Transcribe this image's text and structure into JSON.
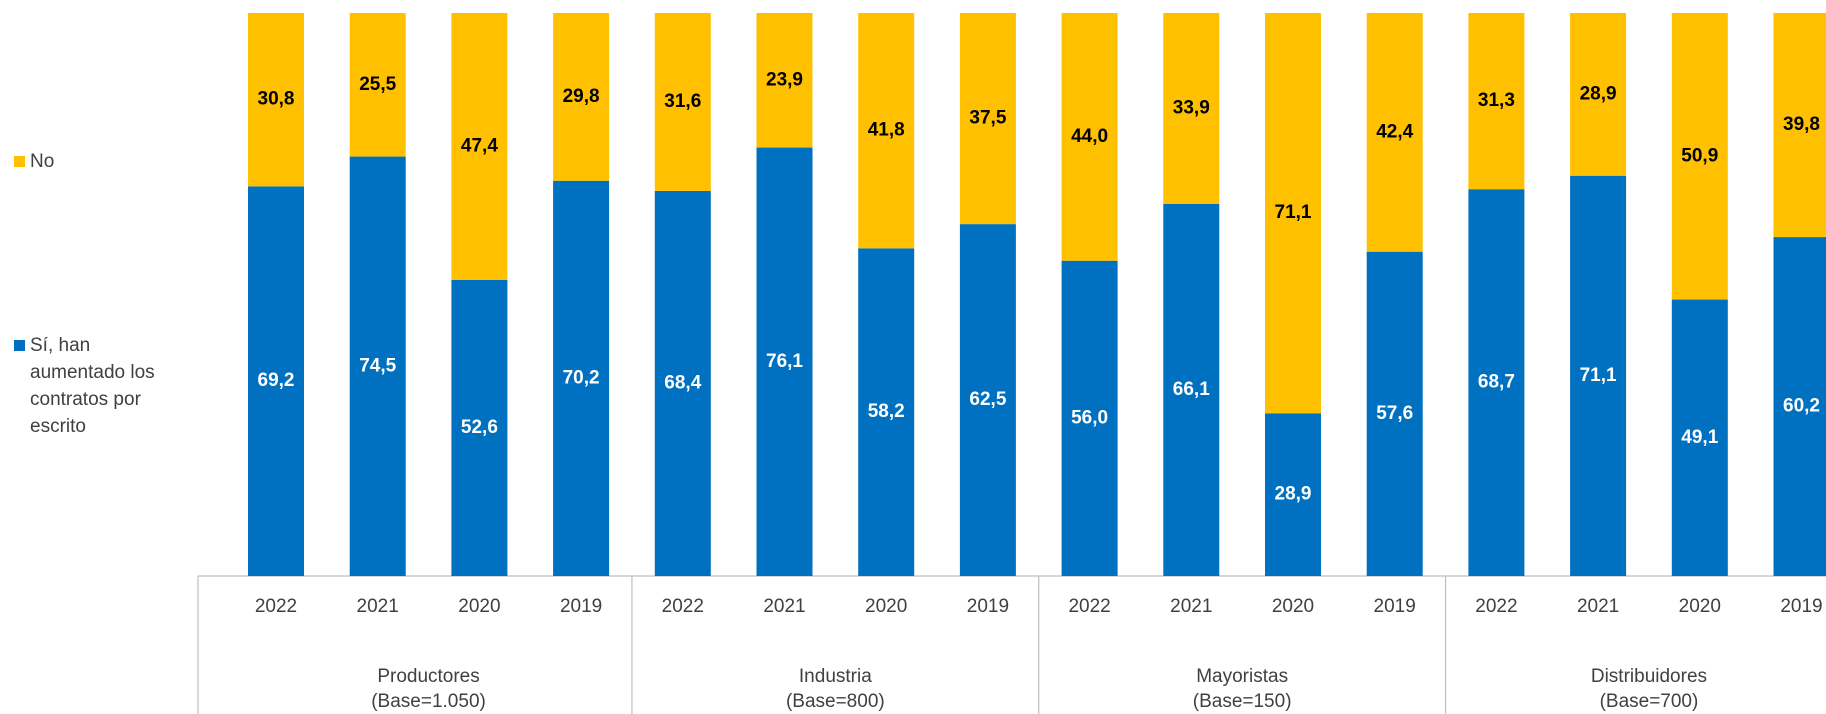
{
  "chart_data": {
    "type": "stacked_bar",
    "groups": [
      {
        "name": "Productores",
        "base": "(Base=1.050)",
        "categories": [
          "2022",
          "2021",
          "2020",
          "2019"
        ]
      },
      {
        "name": "Industria",
        "base": "(Base=800)",
        "categories": [
          "2022",
          "2021",
          "2020",
          "2019"
        ]
      },
      {
        "name": "Mayoristas",
        "base": "(Base=150)",
        "categories": [
          "2022",
          "2021",
          "2020",
          "2019"
        ]
      },
      {
        "name": "Distribuidores",
        "base": "(Base=700)",
        "categories": [
          "2022",
          "2021",
          "2020",
          "2019"
        ]
      }
    ],
    "series": [
      {
        "name": "Sí, han aumentado los contratos por escrito",
        "color": "#0070c0",
        "label_color": "#ffffff",
        "values": [
          69.2,
          74.5,
          52.6,
          70.2,
          68.4,
          76.1,
          58.2,
          62.5,
          56.0,
          66.1,
          28.9,
          57.6,
          68.7,
          71.1,
          49.1,
          60.2
        ],
        "value_labels": [
          "69,2",
          "74,5",
          "52,6",
          "70,2",
          "68,4",
          "76,1",
          "58,2",
          "62,5",
          "56,0",
          "66,1",
          "28,9",
          "57,6",
          "68,7",
          "71,1",
          "49,1",
          "60,2"
        ]
      },
      {
        "name": "No",
        "color": "#ffc000",
        "label_color": "#000000",
        "values": [
          30.8,
          25.5,
          47.4,
          29.8,
          31.6,
          23.9,
          41.8,
          37.5,
          44.0,
          33.9,
          71.1,
          42.4,
          31.3,
          28.9,
          50.9,
          39.8
        ],
        "value_labels": [
          "30,8",
          "25,5",
          "47,4",
          "29,8",
          "31,6",
          "23,9",
          "41,8",
          "37,5",
          "44,0",
          "33,9",
          "71,1",
          "42,4",
          "31,3",
          "28,9",
          "50,9",
          "39,8"
        ]
      }
    ],
    "legend": "left"
  }
}
